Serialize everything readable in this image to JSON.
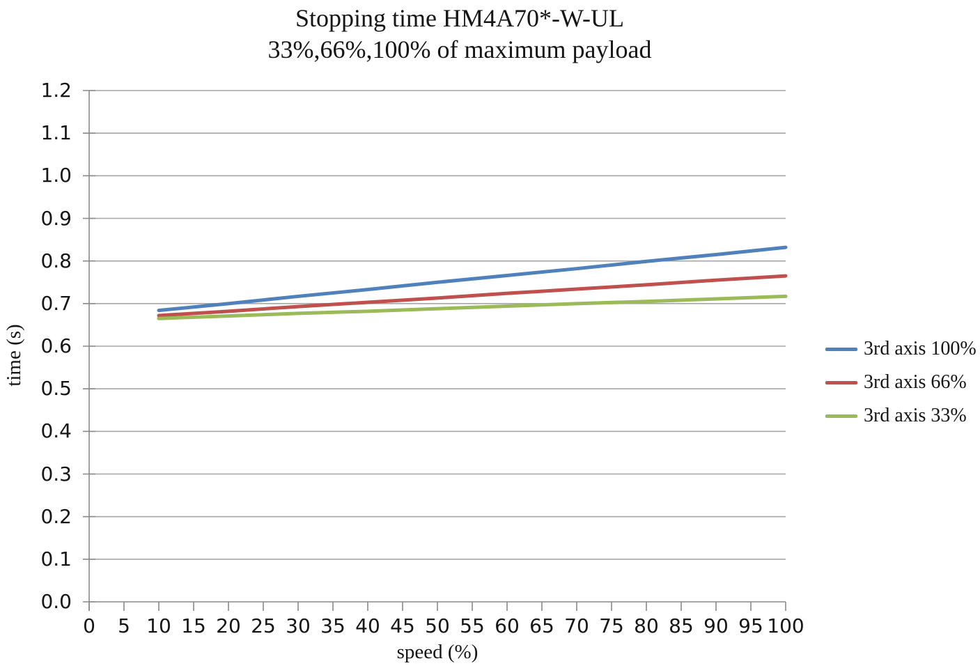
{
  "title": {
    "line1": "Stopping time HM4A70*-W-UL",
    "line2": "33%,66%,100% of maximum payload"
  },
  "axes": {
    "x_label": "speed (%)",
    "y_label": "time (s)"
  },
  "legend": [
    {
      "label": "3rd axis 100%",
      "color": "#4F81BD"
    },
    {
      "label": "3rd axis 66%",
      "color": "#C0504D"
    },
    {
      "label": "3rd axis 33%",
      "color": "#9BBB59"
    }
  ],
  "colors": {
    "grid": "#A6A6A6",
    "axis": "#898989",
    "blue": "#4F81BD",
    "red": "#C0504D",
    "green": "#9BBB59"
  },
  "chart_data": {
    "type": "line",
    "title": "Stopping time HM4A70*-W-UL",
    "subtitle": "33%,66%,100% of maximum payload",
    "xlabel": "speed (%)",
    "ylabel": "time (s)",
    "xlim": [
      0,
      100
    ],
    "ylim": [
      0.0,
      1.2
    ],
    "x_ticks": [
      0,
      5,
      10,
      15,
      20,
      25,
      30,
      35,
      40,
      45,
      50,
      55,
      60,
      65,
      70,
      75,
      80,
      85,
      90,
      95,
      100
    ],
    "y_ticks": [
      "0.0",
      "0.1",
      "0.2",
      "0.3",
      "0.4",
      "0.5",
      "0.6",
      "0.7",
      "0.8",
      "0.9",
      "1.0",
      "1.1",
      "1.2"
    ],
    "grid": "horizontal",
    "legend_position": "right",
    "x": [
      10,
      20,
      30,
      40,
      50,
      60,
      70,
      80,
      90,
      100
    ],
    "series": [
      {
        "name": "3rd axis 100%",
        "color": "#4F81BD",
        "values": [
          0.684,
          0.7,
          0.717,
          0.733,
          0.75,
          0.766,
          0.782,
          0.799,
          0.815,
          0.832
        ]
      },
      {
        "name": "3rd axis 66%",
        "color": "#C0504D",
        "values": [
          0.672,
          0.682,
          0.693,
          0.703,
          0.713,
          0.724,
          0.734,
          0.744,
          0.755,
          0.765
        ]
      },
      {
        "name": "3rd axis 33%",
        "color": "#9BBB59",
        "values": [
          0.665,
          0.671,
          0.677,
          0.682,
          0.688,
          0.694,
          0.7,
          0.705,
          0.711,
          0.717
        ]
      }
    ]
  }
}
